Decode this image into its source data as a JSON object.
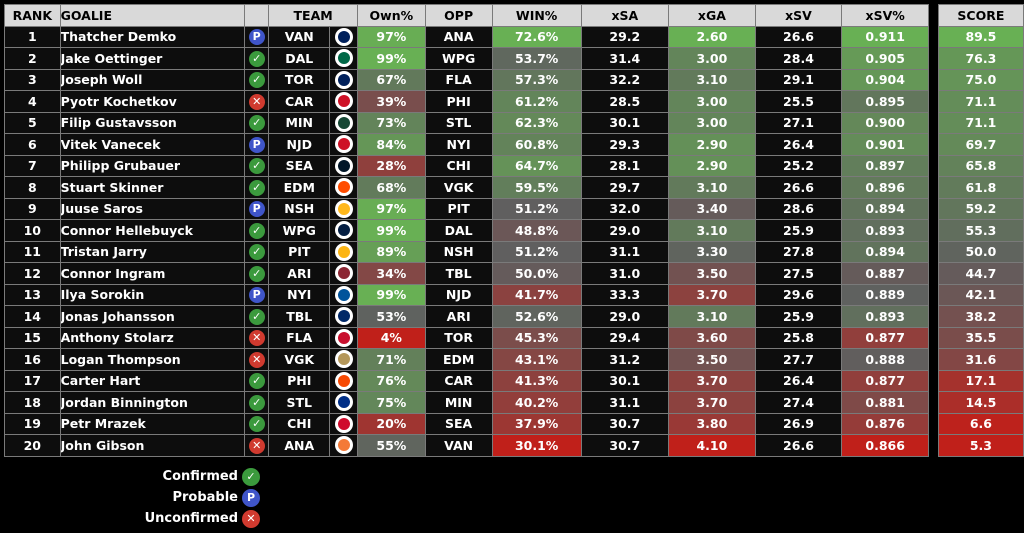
{
  "headers": {
    "rank": "RANK",
    "goalie": "GOALIE",
    "team": "TEAM",
    "own": "Own%",
    "opp": "OPP",
    "win": "WIN%",
    "xsa": "xSA",
    "xga": "xGA",
    "xsv": "xSV",
    "xsvp": "xSV%",
    "score": "SCORE"
  },
  "status_legend": [
    {
      "key": "c",
      "label": "Confirmed",
      "icon": "check-icon",
      "glyph": "✓",
      "color": "#3b9a3d"
    },
    {
      "key": "p",
      "label": "Probable",
      "icon": "probable-p-icon",
      "glyph": "P",
      "color": "#3f55c9"
    },
    {
      "key": "u",
      "label": "Unconfirmed",
      "icon": "x-icon",
      "glyph": "✕",
      "color": "#d03a2f"
    }
  ],
  "team_colors": {
    "VAN": "#00205b",
    "DAL": "#006847",
    "TOR": "#00205b",
    "CAR": "#ce1126",
    "MIN": "#154734",
    "NJD": "#ce1126",
    "SEA": "#001628",
    "EDM": "#ff4c00",
    "NSH": "#ffb81c",
    "WPG": "#041e42",
    "PIT": "#fcb514",
    "ARI": "#8c2633",
    "NYI": "#00539b",
    "TBL": "#002868",
    "FLA": "#c8102e",
    "VGK": "#b4975a",
    "PHI": "#f74902",
    "STL": "#002f87",
    "CHI": "#cf0a2c",
    "ANA": "#f47a38"
  },
  "rows": [
    {
      "rank": "1",
      "goalie": "Thatcher Demko",
      "status": "p",
      "team": "VAN",
      "own": "97%",
      "opp": "ANA",
      "win": "72.6%",
      "xsa": "29.2",
      "xga": "2.60",
      "xsv": "26.6",
      "xsvp": "0.911",
      "score": "89.5"
    },
    {
      "rank": "2",
      "goalie": "Jake Oettinger",
      "status": "c",
      "team": "DAL",
      "own": "99%",
      "opp": "WPG",
      "win": "53.7%",
      "xsa": "31.4",
      "xga": "3.00",
      "xsv": "28.4",
      "xsvp": "0.905",
      "score": "76.3"
    },
    {
      "rank": "3",
      "goalie": "Joseph Woll",
      "status": "c",
      "team": "TOR",
      "own": "67%",
      "opp": "FLA",
      "win": "57.3%",
      "xsa": "32.2",
      "xga": "3.10",
      "xsv": "29.1",
      "xsvp": "0.904",
      "score": "75.0"
    },
    {
      "rank": "4",
      "goalie": "Pyotr Kochetkov",
      "status": "u",
      "team": "CAR",
      "own": "39%",
      "opp": "PHI",
      "win": "61.2%",
      "xsa": "28.5",
      "xga": "3.00",
      "xsv": "25.5",
      "xsvp": "0.895",
      "score": "71.1"
    },
    {
      "rank": "5",
      "goalie": "Filip Gustavsson",
      "status": "c",
      "team": "MIN",
      "own": "73%",
      "opp": "STL",
      "win": "62.3%",
      "xsa": "30.1",
      "xga": "3.00",
      "xsv": "27.1",
      "xsvp": "0.900",
      "score": "71.1"
    },
    {
      "rank": "6",
      "goalie": "Vitek Vanecek",
      "status": "p",
      "team": "NJD",
      "own": "84%",
      "opp": "NYI",
      "win": "60.8%",
      "xsa": "29.3",
      "xga": "2.90",
      "xsv": "26.4",
      "xsvp": "0.901",
      "score": "69.7"
    },
    {
      "rank": "7",
      "goalie": "Philipp Grubauer",
      "status": "c",
      "team": "SEA",
      "own": "28%",
      "opp": "CHI",
      "win": "64.7%",
      "xsa": "28.1",
      "xga": "2.90",
      "xsv": "25.2",
      "xsvp": "0.897",
      "score": "65.8"
    },
    {
      "rank": "8",
      "goalie": "Stuart Skinner",
      "status": "c",
      "team": "EDM",
      "own": "68%",
      "opp": "VGK",
      "win": "59.5%",
      "xsa": "29.7",
      "xga": "3.10",
      "xsv": "26.6",
      "xsvp": "0.896",
      "score": "61.8"
    },
    {
      "rank": "9",
      "goalie": "Juuse Saros",
      "status": "p",
      "team": "NSH",
      "own": "97%",
      "opp": "PIT",
      "win": "51.2%",
      "xsa": "32.0",
      "xga": "3.40",
      "xsv": "28.6",
      "xsvp": "0.894",
      "score": "59.2"
    },
    {
      "rank": "10",
      "goalie": "Connor Hellebuyck",
      "status": "c",
      "team": "WPG",
      "own": "99%",
      "opp": "DAL",
      "win": "48.8%",
      "xsa": "29.0",
      "xga": "3.10",
      "xsv": "25.9",
      "xsvp": "0.893",
      "score": "55.3"
    },
    {
      "rank": "11",
      "goalie": "Tristan Jarry",
      "status": "c",
      "team": "PIT",
      "own": "89%",
      "opp": "NSH",
      "win": "51.2%",
      "xsa": "31.1",
      "xga": "3.30",
      "xsv": "27.8",
      "xsvp": "0.894",
      "score": "50.0"
    },
    {
      "rank": "12",
      "goalie": "Connor Ingram",
      "status": "c",
      "team": "ARI",
      "own": "34%",
      "opp": "TBL",
      "win": "50.0%",
      "xsa": "31.0",
      "xga": "3.50",
      "xsv": "27.5",
      "xsvp": "0.887",
      "score": "44.7"
    },
    {
      "rank": "13",
      "goalie": "Ilya Sorokin",
      "status": "p",
      "team": "NYI",
      "own": "99%",
      "opp": "NJD",
      "win": "41.7%",
      "xsa": "33.3",
      "xga": "3.70",
      "xsv": "29.6",
      "xsvp": "0.889",
      "score": "42.1"
    },
    {
      "rank": "14",
      "goalie": "Jonas Johansson",
      "status": "c",
      "team": "TBL",
      "own": "53%",
      "opp": "ARI",
      "win": "52.6%",
      "xsa": "29.0",
      "xga": "3.10",
      "xsv": "25.9",
      "xsvp": "0.893",
      "score": "38.2"
    },
    {
      "rank": "15",
      "goalie": "Anthony Stolarz",
      "status": "u",
      "team": "FLA",
      "own": "4%",
      "opp": "TOR",
      "win": "45.3%",
      "xsa": "29.4",
      "xga": "3.60",
      "xsv": "25.8",
      "xsvp": "0.877",
      "score": "35.5"
    },
    {
      "rank": "16",
      "goalie": "Logan Thompson",
      "status": "u",
      "team": "VGK",
      "own": "71%",
      "opp": "EDM",
      "win": "43.1%",
      "xsa": "31.2",
      "xga": "3.50",
      "xsv": "27.7",
      "xsvp": "0.888",
      "score": "31.6"
    },
    {
      "rank": "17",
      "goalie": "Carter Hart",
      "status": "c",
      "team": "PHI",
      "own": "76%",
      "opp": "CAR",
      "win": "41.3%",
      "xsa": "30.1",
      "xga": "3.70",
      "xsv": "26.4",
      "xsvp": "0.877",
      "score": "17.1"
    },
    {
      "rank": "18",
      "goalie": "Jordan Binnington",
      "status": "c",
      "team": "STL",
      "own": "75%",
      "opp": "MIN",
      "win": "40.2%",
      "xsa": "31.1",
      "xga": "3.70",
      "xsv": "27.4",
      "xsvp": "0.881",
      "score": "14.5"
    },
    {
      "rank": "19",
      "goalie": "Petr Mrazek",
      "status": "c",
      "team": "CHI",
      "own": "20%",
      "opp": "SEA",
      "win": "37.9%",
      "xsa": "30.7",
      "xga": "3.80",
      "xsv": "26.9",
      "xsvp": "0.876",
      "score": "6.6"
    },
    {
      "rank": "20",
      "goalie": "John Gibson",
      "status": "u",
      "team": "ANA",
      "own": "55%",
      "opp": "VAN",
      "win": "30.1%",
      "xsa": "30.7",
      "xga": "4.10",
      "xsv": "26.6",
      "xsvp": "0.866",
      "score": "5.3"
    }
  ]
}
